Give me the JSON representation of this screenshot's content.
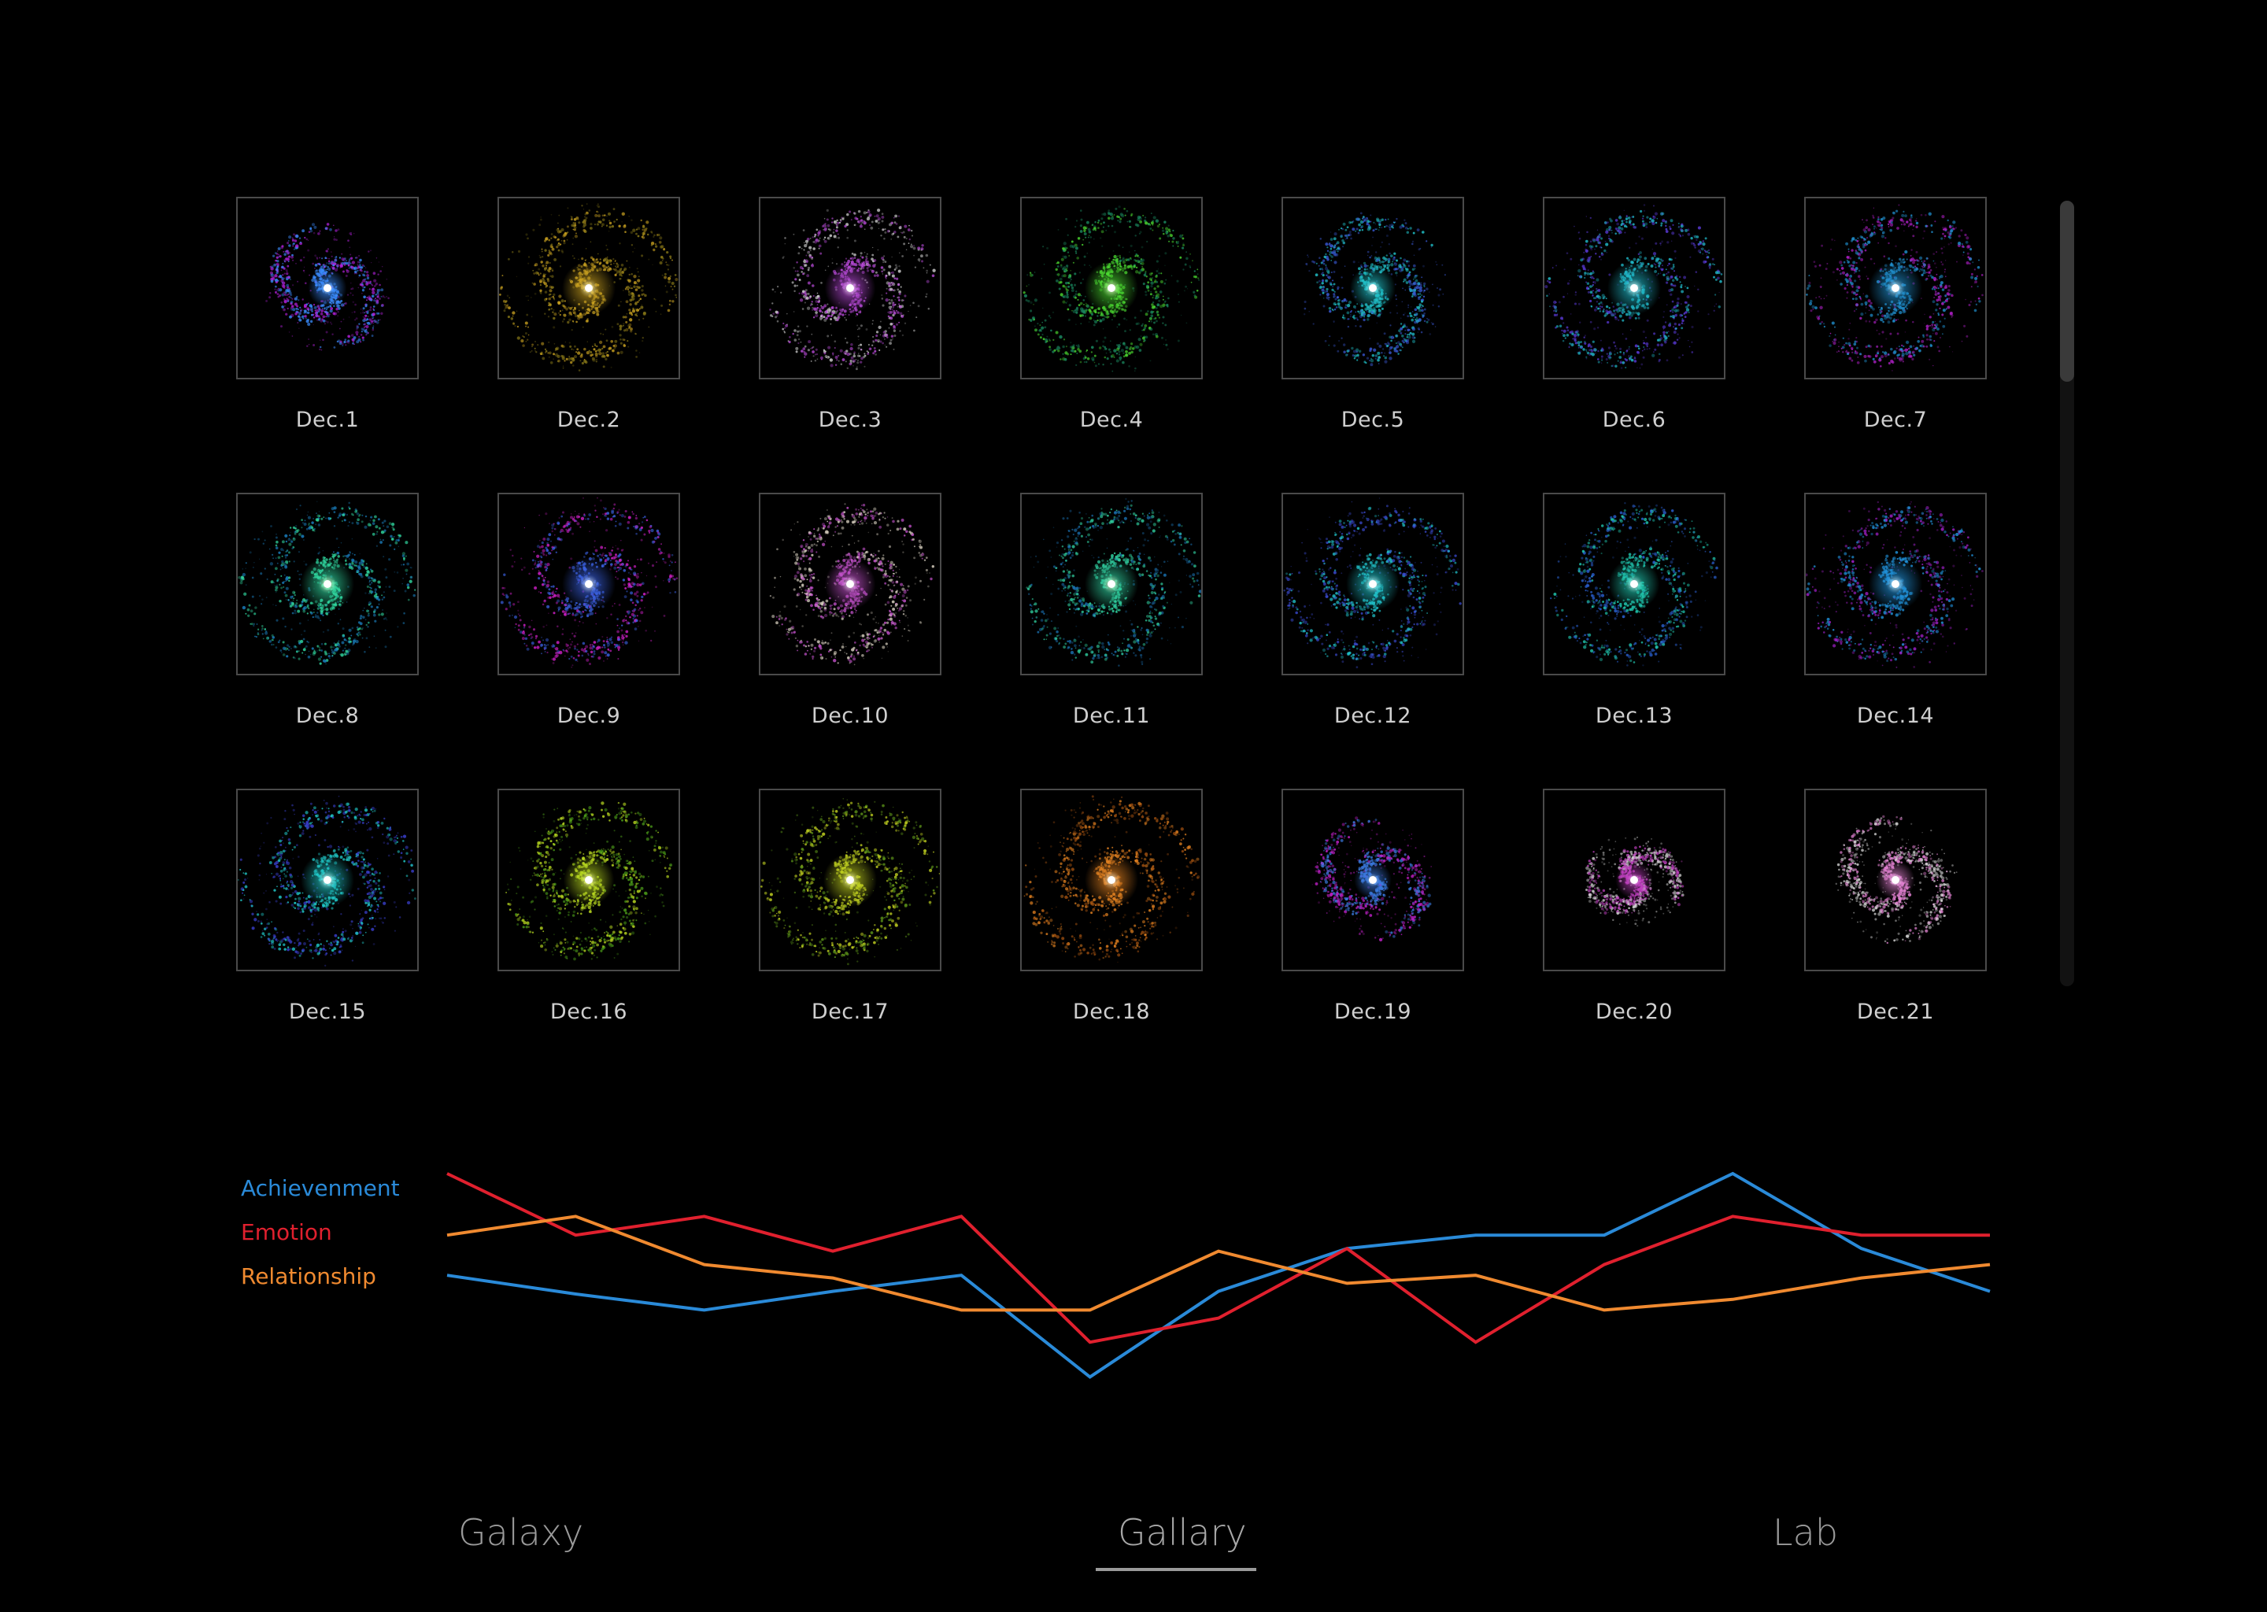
{
  "gallery": {
    "items": [
      {
        "label": "Dec.1",
        "colors": [
          "#dff6ff",
          "#3a8cff",
          "#b020d8"
        ],
        "size": 0.72
      },
      {
        "label": "Dec.2",
        "colors": [
          "#fff7c0",
          "#c8a020",
          "#8a7a18"
        ],
        "size": 1.0
      },
      {
        "label": "Dec.3",
        "colors": [
          "#ffe8ff",
          "#b84ad8",
          "#cfcfcf"
        ],
        "size": 0.95
      },
      {
        "label": "Dec.4",
        "colors": [
          "#f0ffd0",
          "#4ad830",
          "#1a8a60"
        ],
        "size": 1.0
      },
      {
        "label": "Dec.5",
        "colors": [
          "#e0ffff",
          "#20c0c8",
          "#3a5ad8"
        ],
        "size": 0.85
      },
      {
        "label": "Dec.6",
        "colors": [
          "#e0ffff",
          "#20b8c8",
          "#5a3ad8"
        ],
        "size": 1.0
      },
      {
        "label": "Dec.7",
        "colors": [
          "#e0f8ff",
          "#2090d0",
          "#b020c8"
        ],
        "size": 1.0
      },
      {
        "label": "Dec.8",
        "colors": [
          "#f0ffd0",
          "#30d8a0",
          "#1a80c0"
        ],
        "size": 1.0
      },
      {
        "label": "Dec.9",
        "colors": [
          "#e8f8ff",
          "#3a60e0",
          "#d020c8"
        ],
        "size": 1.0
      },
      {
        "label": "Dec.10",
        "colors": [
          "#fff0ff",
          "#c050c8",
          "#d8d0c0"
        ],
        "size": 0.95
      },
      {
        "label": "Dec.11",
        "colors": [
          "#f0ffd0",
          "#30d0a0",
          "#1a70b0"
        ],
        "size": 1.0
      },
      {
        "label": "Dec.12",
        "colors": [
          "#e0ffff",
          "#20c0c8",
          "#3a4ad0"
        ],
        "size": 1.0
      },
      {
        "label": "Dec.13",
        "colors": [
          "#e0ffff",
          "#20c8b0",
          "#2a60d0"
        ],
        "size": 0.95
      },
      {
        "label": "Dec.14",
        "colors": [
          "#e0f8ff",
          "#2090d8",
          "#a020c8"
        ],
        "size": 1.0
      },
      {
        "label": "Dec.15",
        "colors": [
          "#e0ffff",
          "#20c8c8",
          "#3a40d0"
        ],
        "size": 1.0
      },
      {
        "label": "Dec.16",
        "colors": [
          "#ffffc0",
          "#b8d820",
          "#4a9a18"
        ],
        "size": 0.95
      },
      {
        "label": "Dec.17",
        "colors": [
          "#ffffc0",
          "#c0d020",
          "#5a9018"
        ],
        "size": 1.0
      },
      {
        "label": "Dec.18",
        "colors": [
          "#fff0d0",
          "#e08020",
          "#a05010"
        ],
        "size": 1.0
      },
      {
        "label": "Dec.19",
        "colors": [
          "#e0f8ff",
          "#3a7ae0",
          "#c020c8"
        ],
        "size": 0.7
      },
      {
        "label": "Dec.20",
        "colors": [
          "#fff0ff",
          "#c040c0",
          "#d0d0d0"
        ],
        "size": 0.55
      },
      {
        "label": "Dec.21",
        "colors": [
          "#ffffff",
          "#e080d0",
          "#d8d8d8"
        ],
        "size": 0.72
      }
    ]
  },
  "chart_data": {
    "type": "line",
    "x": [
      1,
      2,
      3,
      4,
      5,
      6,
      7,
      8,
      9,
      10,
      11,
      12,
      13
    ],
    "ylim": [
      0,
      100
    ],
    "series": [
      {
        "name": "Achievenment",
        "color": "#2a8ad8",
        "values": [
          47,
          40,
          34,
          41,
          47,
          9,
          41,
          57,
          62,
          62,
          85,
          57,
          41
        ]
      },
      {
        "name": "Emotion",
        "color": "#e0202e",
        "values": [
          85,
          62,
          69,
          56,
          69,
          22,
          31,
          57,
          22,
          51,
          69,
          62,
          62
        ]
      },
      {
        "name": "Relationship",
        "color": "#f08a30",
        "values": [
          62,
          69,
          51,
          46,
          34,
          34,
          56,
          44,
          47,
          34,
          38,
          46,
          51
        ]
      }
    ]
  },
  "nav": {
    "tabs": [
      {
        "label": "Galaxy"
      },
      {
        "label": "Gallary",
        "active": true
      },
      {
        "label": "Lab"
      }
    ]
  }
}
